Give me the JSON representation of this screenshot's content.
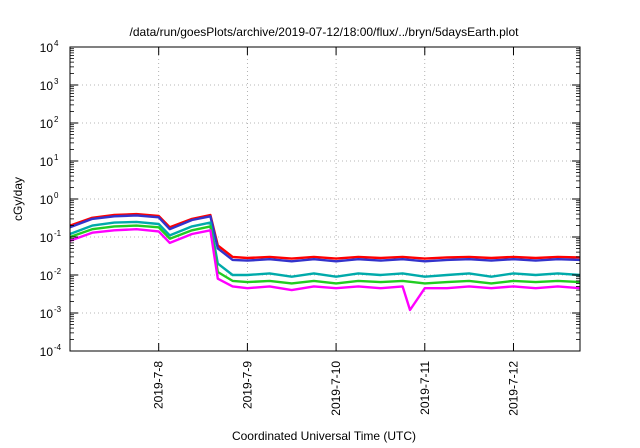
{
  "chart_data": {
    "type": "line",
    "title": "/data/run/goesPlots/archive/2019-07-12/18:00/flux/../bryn/5daysEarth.plot",
    "xlabel": "Coordinated Universal Time (UTC)",
    "ylabel": "cGy/day",
    "x_range": [
      "2019-07-07 00:00",
      "2019-07-12 18:00"
    ],
    "x_ticks": [
      "2019-7-8",
      "2019-7-9",
      "2019-7-10",
      "2019-7-11",
      "2019-7-12"
    ],
    "x_tick_dates": [
      "2019-07-08",
      "2019-07-09",
      "2019-07-10",
      "2019-07-11",
      "2019-07-12"
    ],
    "y_scale": "log",
    "ylim": [
      0.0001,
      10000
    ],
    "y_ticks": [
      {
        "base": "10",
        "exp": "-4"
      },
      {
        "base": "10",
        "exp": "-3"
      },
      {
        "base": "10",
        "exp": "-2"
      },
      {
        "base": "10",
        "exp": "-1"
      },
      {
        "base": "10",
        "exp": "0"
      },
      {
        "base": "10",
        "exp": "1"
      },
      {
        "base": "10",
        "exp": "2"
      },
      {
        "base": "10",
        "exp": "3"
      },
      {
        "base": "10",
        "exp": "4"
      }
    ],
    "grid": true,
    "series_colors": [
      "#ff0000",
      "#3333cc",
      "#00aaaa",
      "#22cc22",
      "#ff00ff"
    ],
    "series": [
      {
        "color": "#ff0000",
        "points": [
          [
            "2019-07-07 00:00",
            0.2
          ],
          [
            "2019-07-07 06:00",
            0.32
          ],
          [
            "2019-07-07 12:00",
            0.38
          ],
          [
            "2019-07-07 18:00",
            0.4
          ],
          [
            "2019-07-08 00:00",
            0.36
          ],
          [
            "2019-07-08 03:00",
            0.18
          ],
          [
            "2019-07-08 09:00",
            0.3
          ],
          [
            "2019-07-08 14:00",
            0.38
          ],
          [
            "2019-07-08 16:00",
            0.06
          ],
          [
            "2019-07-08 20:00",
            0.03
          ],
          [
            "2019-07-09 00:00",
            0.028
          ],
          [
            "2019-07-09 06:00",
            0.03
          ],
          [
            "2019-07-09 12:00",
            0.027
          ],
          [
            "2019-07-09 18:00",
            0.03
          ],
          [
            "2019-07-10 00:00",
            0.027
          ],
          [
            "2019-07-10 06:00",
            0.03
          ],
          [
            "2019-07-10 12:00",
            0.028
          ],
          [
            "2019-07-10 18:00",
            0.03
          ],
          [
            "2019-07-11 00:00",
            0.027
          ],
          [
            "2019-07-11 06:00",
            0.029
          ],
          [
            "2019-07-11 12:00",
            0.03
          ],
          [
            "2019-07-11 18:00",
            0.028
          ],
          [
            "2019-07-12 00:00",
            0.03
          ],
          [
            "2019-07-12 06:00",
            0.028
          ],
          [
            "2019-07-12 12:00",
            0.03
          ],
          [
            "2019-07-12 18:00",
            0.029
          ]
        ]
      },
      {
        "color": "#3333cc",
        "points": [
          [
            "2019-07-07 00:00",
            0.18
          ],
          [
            "2019-07-07 06:00",
            0.3
          ],
          [
            "2019-07-07 12:00",
            0.35
          ],
          [
            "2019-07-07 18:00",
            0.37
          ],
          [
            "2019-07-08 00:00",
            0.33
          ],
          [
            "2019-07-08 03:00",
            0.16
          ],
          [
            "2019-07-08 09:00",
            0.28
          ],
          [
            "2019-07-08 14:00",
            0.35
          ],
          [
            "2019-07-08 16:00",
            0.05
          ],
          [
            "2019-07-08 20:00",
            0.025
          ],
          [
            "2019-07-09 00:00",
            0.024
          ],
          [
            "2019-07-09 06:00",
            0.026
          ],
          [
            "2019-07-09 12:00",
            0.023
          ],
          [
            "2019-07-09 18:00",
            0.026
          ],
          [
            "2019-07-10 00:00",
            0.023
          ],
          [
            "2019-07-10 06:00",
            0.026
          ],
          [
            "2019-07-10 12:00",
            0.024
          ],
          [
            "2019-07-10 18:00",
            0.026
          ],
          [
            "2019-07-11 00:00",
            0.023
          ],
          [
            "2019-07-11 06:00",
            0.025
          ],
          [
            "2019-07-11 12:00",
            0.026
          ],
          [
            "2019-07-11 18:00",
            0.024
          ],
          [
            "2019-07-12 00:00",
            0.026
          ],
          [
            "2019-07-12 06:00",
            0.024
          ],
          [
            "2019-07-12 12:00",
            0.026
          ],
          [
            "2019-07-12 18:00",
            0.025
          ]
        ]
      },
      {
        "color": "#00aaaa",
        "points": [
          [
            "2019-07-07 00:00",
            0.12
          ],
          [
            "2019-07-07 06:00",
            0.2
          ],
          [
            "2019-07-07 12:00",
            0.24
          ],
          [
            "2019-07-07 18:00",
            0.25
          ],
          [
            "2019-07-08 00:00",
            0.22
          ],
          [
            "2019-07-08 03:00",
            0.11
          ],
          [
            "2019-07-08 09:00",
            0.19
          ],
          [
            "2019-07-08 14:00",
            0.24
          ],
          [
            "2019-07-08 16:00",
            0.02
          ],
          [
            "2019-07-08 20:00",
            0.01
          ],
          [
            "2019-07-09 00:00",
            0.01
          ],
          [
            "2019-07-09 06:00",
            0.011
          ],
          [
            "2019-07-09 12:00",
            0.009
          ],
          [
            "2019-07-09 18:00",
            0.011
          ],
          [
            "2019-07-10 00:00",
            0.009
          ],
          [
            "2019-07-10 06:00",
            0.011
          ],
          [
            "2019-07-10 12:00",
            0.01
          ],
          [
            "2019-07-10 18:00",
            0.011
          ],
          [
            "2019-07-11 00:00",
            0.009
          ],
          [
            "2019-07-11 06:00",
            0.01
          ],
          [
            "2019-07-11 12:00",
            0.011
          ],
          [
            "2019-07-11 18:00",
            0.009
          ],
          [
            "2019-07-12 00:00",
            0.011
          ],
          [
            "2019-07-12 06:00",
            0.01
          ],
          [
            "2019-07-12 12:00",
            0.011
          ],
          [
            "2019-07-12 18:00",
            0.01
          ]
        ]
      },
      {
        "color": "#22cc22",
        "points": [
          [
            "2019-07-07 00:00",
            0.1
          ],
          [
            "2019-07-07 06:00",
            0.16
          ],
          [
            "2019-07-07 12:00",
            0.19
          ],
          [
            "2019-07-07 18:00",
            0.2
          ],
          [
            "2019-07-08 00:00",
            0.18
          ],
          [
            "2019-07-08 03:00",
            0.09
          ],
          [
            "2019-07-08 09:00",
            0.15
          ],
          [
            "2019-07-08 14:00",
            0.19
          ],
          [
            "2019-07-08 16:00",
            0.012
          ],
          [
            "2019-07-08 20:00",
            0.007
          ],
          [
            "2019-07-09 00:00",
            0.0065
          ],
          [
            "2019-07-09 06:00",
            0.007
          ],
          [
            "2019-07-09 12:00",
            0.006
          ],
          [
            "2019-07-09 18:00",
            0.007
          ],
          [
            "2019-07-10 00:00",
            0.006
          ],
          [
            "2019-07-10 06:00",
            0.007
          ],
          [
            "2019-07-10 12:00",
            0.0065
          ],
          [
            "2019-07-10 18:00",
            0.007
          ],
          [
            "2019-07-11 00:00",
            0.006
          ],
          [
            "2019-07-11 06:00",
            0.0065
          ],
          [
            "2019-07-11 12:00",
            0.007
          ],
          [
            "2019-07-11 18:00",
            0.006
          ],
          [
            "2019-07-12 00:00",
            0.007
          ],
          [
            "2019-07-12 06:00",
            0.0065
          ],
          [
            "2019-07-12 12:00",
            0.007
          ],
          [
            "2019-07-12 18:00",
            0.0065
          ]
        ]
      },
      {
        "color": "#ff00ff",
        "points": [
          [
            "2019-07-07 00:00",
            0.08
          ],
          [
            "2019-07-07 06:00",
            0.13
          ],
          [
            "2019-07-07 12:00",
            0.15
          ],
          [
            "2019-07-07 18:00",
            0.16
          ],
          [
            "2019-07-08 00:00",
            0.14
          ],
          [
            "2019-07-08 03:00",
            0.07
          ],
          [
            "2019-07-08 09:00",
            0.12
          ],
          [
            "2019-07-08 14:00",
            0.15
          ],
          [
            "2019-07-08 16:00",
            0.008
          ],
          [
            "2019-07-08 20:00",
            0.005
          ],
          [
            "2019-07-09 00:00",
            0.0045
          ],
          [
            "2019-07-09 06:00",
            0.005
          ],
          [
            "2019-07-09 12:00",
            0.004
          ],
          [
            "2019-07-09 18:00",
            0.005
          ],
          [
            "2019-07-10 00:00",
            0.0045
          ],
          [
            "2019-07-10 06:00",
            0.005
          ],
          [
            "2019-07-10 12:00",
            0.0045
          ],
          [
            "2019-07-10 18:00",
            0.005
          ],
          [
            "2019-07-10 20:00",
            0.0012
          ],
          [
            "2019-07-11 00:00",
            0.0045
          ],
          [
            "2019-07-11 06:00",
            0.0045
          ],
          [
            "2019-07-11 12:00",
            0.005
          ],
          [
            "2019-07-11 18:00",
            0.0045
          ],
          [
            "2019-07-12 00:00",
            0.005
          ],
          [
            "2019-07-12 06:00",
            0.0045
          ],
          [
            "2019-07-12 12:00",
            0.005
          ],
          [
            "2019-07-12 18:00",
            0.0045
          ]
        ]
      }
    ]
  }
}
